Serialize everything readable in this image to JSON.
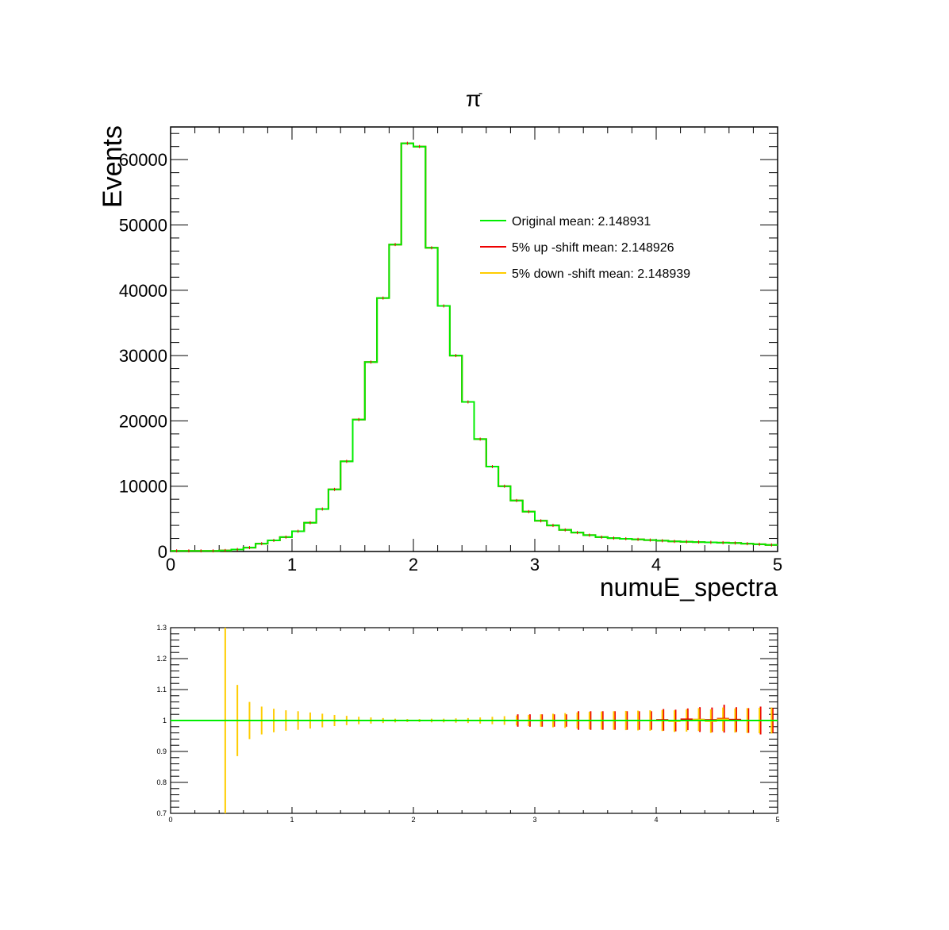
{
  "chart_data": [
    {
      "type": "histogram",
      "title": "π",
      "title_superscript": "-",
      "xlabel": "numuE_spectra",
      "ylabel": "Events",
      "xlim": [
        0,
        5
      ],
      "ylim": [
        0,
        65000
      ],
      "x_ticks": [
        "0",
        "1",
        "2",
        "3",
        "4",
        "5"
      ],
      "y_ticks": [
        "0",
        "10000",
        "20000",
        "30000",
        "40000",
        "50000",
        "60000"
      ],
      "bin_edges_start": 0.0,
      "bin_width": 0.1,
      "legend_position": "top-right",
      "series": [
        {
          "name": "Original mean: 2.148931",
          "color": "#00ee00",
          "values": [
            100,
            100,
            100,
            100,
            150,
            300,
            600,
            1200,
            1700,
            2200,
            3100,
            4400,
            6500,
            9500,
            13800,
            20200,
            29000,
            38800,
            47000,
            62500,
            62000,
            46500,
            37600,
            30000,
            22900,
            17200,
            13000,
            10000,
            7800,
            6100,
            4700,
            4000,
            3300,
            2900,
            2500,
            2200,
            2050,
            1950,
            1850,
            1750,
            1650,
            1550,
            1500,
            1450,
            1400,
            1350,
            1300,
            1200,
            1100,
            1000
          ]
        },
        {
          "name": "5% up -shift mean: 2.148926",
          "color": "#ee0000",
          "values": [
            100,
            100,
            100,
            100,
            150,
            300,
            600,
            1200,
            1700,
            2200,
            3100,
            4400,
            6500,
            9500,
            13800,
            20200,
            29000,
            38800,
            47000,
            62500,
            62000,
            46500,
            37600,
            30000,
            22900,
            17200,
            13000,
            10000,
            7800,
            6100,
            4700,
            4000,
            3300,
            2900,
            2500,
            2200,
            2050,
            1950,
            1850,
            1750,
            1650,
            1550,
            1500,
            1450,
            1400,
            1350,
            1300,
            1200,
            1100,
            1000
          ]
        },
        {
          "name": "5% down -shift mean: 2.148939",
          "color": "#ffcc00",
          "values": [
            100,
            100,
            100,
            100,
            150,
            300,
            600,
            1200,
            1700,
            2200,
            3100,
            4400,
            6500,
            9500,
            13800,
            20200,
            29000,
            38800,
            47000,
            62500,
            62000,
            46500,
            37600,
            30000,
            22900,
            17200,
            13000,
            10000,
            7800,
            6100,
            4700,
            4000,
            3300,
            2900,
            2500,
            2200,
            2050,
            1950,
            1850,
            1750,
            1650,
            1550,
            1500,
            1450,
            1400,
            1350,
            1300,
            1200,
            1100,
            1000
          ]
        }
      ]
    },
    {
      "type": "ratio",
      "xlim": [
        0,
        5
      ],
      "ylim": [
        0.7,
        1.3
      ],
      "x_ticks": [
        "0",
        "1",
        "2",
        "3",
        "4",
        "5"
      ],
      "y_ticks": [
        "0.7",
        "0.8",
        "0.9",
        "1",
        "1.1",
        "1.2",
        "1.3"
      ],
      "reference_line": 1.0,
      "reference_color": "#00ee00",
      "up_color": "#ee0000",
      "down_color": "#ffcc00",
      "x": [
        0.45,
        0.55,
        0.65,
        0.75,
        0.85,
        0.95,
        1.05,
        1.15,
        1.25,
        1.35,
        1.45,
        1.55,
        1.65,
        1.75,
        1.85,
        1.95,
        2.05,
        2.15,
        2.25,
        2.35,
        2.45,
        2.55,
        2.65,
        2.75,
        2.85,
        2.95,
        3.05,
        3.15,
        3.25,
        3.35,
        3.45,
        3.55,
        3.65,
        3.75,
        3.85,
        3.95,
        4.05,
        4.15,
        4.25,
        4.35,
        4.45,
        4.55,
        4.65,
        4.75,
        4.85,
        4.95
      ],
      "up_ratio": [
        1.0,
        1.0,
        1.0,
        1.0,
        1.0,
        1.0,
        1.0,
        1.0,
        1.0,
        1.0,
        1.0,
        1.0,
        1.0,
        1.0,
        1.0,
        1.0,
        1.0,
        1.0,
        1.0,
        1.0,
        1.0,
        1.0,
        1.0,
        1.0,
        1.0,
        1.0,
        1.0,
        1.0,
        1.0,
        1.0,
        1.0,
        1.0,
        1.0,
        1.0,
        1.0,
        1.0,
        1.002,
        1.0,
        1.004,
        1.003,
        1.002,
        1.006,
        1.003,
        1.0,
        1.0,
        1.0
      ],
      "down_ratio": [
        1.0,
        1.0,
        1.0,
        1.0,
        1.0,
        1.0,
        1.0,
        1.0,
        1.0,
        1.0,
        1.0,
        1.0,
        1.0,
        1.0,
        1.0,
        1.0,
        1.0,
        1.0,
        1.0,
        1.0,
        1.0,
        1.0,
        1.0,
        1.0,
        1.0,
        1.0,
        1.0,
        1.0,
        1.0,
        1.0,
        1.0,
        1.0,
        1.0,
        1.0,
        1.0,
        1.0,
        1.0,
        0.998,
        1.0,
        1.003,
        0.998,
        1.004,
        1.0,
        1.0,
        1.0,
        1.0
      ],
      "up_err": [
        0.0,
        0.0,
        0.0,
        0.0,
        0.0,
        0.0,
        0.0,
        0.0,
        0.0,
        0.0,
        0.0,
        0.0,
        0.0,
        0.0,
        0.0,
        0.0,
        0.0,
        0.0,
        0.0,
        0.0,
        0.0,
        0.0,
        0.0,
        0.0,
        0.02,
        0.02,
        0.02,
        0.02,
        0.02,
        0.03,
        0.03,
        0.03,
        0.03,
        0.03,
        0.03,
        0.03,
        0.035,
        0.035,
        0.035,
        0.04,
        0.04,
        0.045,
        0.04,
        0.04,
        0.045,
        0.04
      ],
      "down_err": [
        0.3,
        0.115,
        0.06,
        0.045,
        0.038,
        0.033,
        0.03,
        0.026,
        0.022,
        0.018,
        0.015,
        0.012,
        0.01,
        0.008,
        0.006,
        0.005,
        0.005,
        0.006,
        0.006,
        0.007,
        0.008,
        0.01,
        0.012,
        0.014,
        0.016,
        0.018,
        0.02,
        0.022,
        0.024,
        0.026,
        0.028,
        0.029,
        0.03,
        0.031,
        0.032,
        0.033,
        0.034,
        0.035,
        0.036,
        0.037,
        0.038,
        0.038,
        0.039,
        0.04,
        0.041,
        0.042
      ]
    }
  ]
}
